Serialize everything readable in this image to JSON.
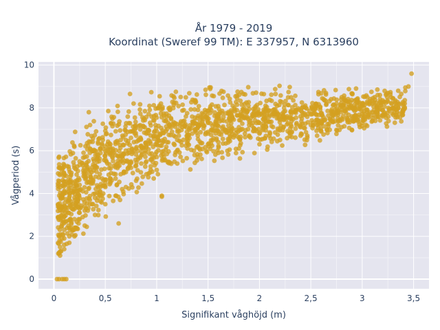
{
  "chart_data": {
    "type": "scatter",
    "title_line1": "År 1979 - 2019",
    "title_line2": "Koordinat (Sweref 99 TM): E 337957, N 6313960",
    "xlabel": "Signifikant våghöjd (m)",
    "ylabel": "Vågperiod (s)",
    "xlim": [
      -0.15,
      3.65
    ],
    "ylim": [
      -0.45,
      10.15
    ],
    "xticks": [
      0,
      0.5,
      1,
      1.5,
      2,
      2.5,
      3,
      3.5
    ],
    "xtick_labels": [
      "0",
      "0,5",
      "1",
      "1,5",
      "2",
      "2,5",
      "3",
      "3,5"
    ],
    "yticks": [
      0,
      2,
      4,
      6,
      8,
      10
    ],
    "ytick_labels": [
      "0",
      "2",
      "4",
      "6",
      "8",
      "10"
    ],
    "grid": true,
    "marker_color": "#d4a020",
    "background_color": "#e5e5ef",
    "series": [
      {
        "x": [
          0.03,
          0.05,
          0.08,
          0.1,
          0.12,
          0.05,
          0.06,
          0.08,
          0.1,
          0.12,
          0.14,
          0.18,
          0.2,
          0.22,
          0.25,
          0.3,
          0.35,
          0.4,
          0.15,
          0.2,
          0.25,
          0.3,
          0.35,
          0.4,
          0.45,
          0.5,
          0.55,
          0.6,
          0.07,
          0.1,
          0.15,
          0.2,
          0.25,
          0.3,
          0.35,
          0.4,
          0.45,
          0.5,
          0.55,
          0.6,
          0.65,
          0.7,
          0.75,
          0.8,
          0.85,
          0.9,
          0.95,
          1.0,
          1.1,
          1.2,
          1.3,
          1.4,
          1.5,
          1.6,
          1.7,
          1.8,
          1.9,
          2.0,
          2.1,
          2.2,
          2.3,
          2.4,
          2.5,
          2.6,
          2.7,
          2.8,
          2.9,
          3.0,
          3.1,
          3.2,
          3.3,
          3.4,
          0.05,
          0.08,
          0.12,
          0.15,
          0.2,
          0.3,
          0.4,
          0.5,
          0.6,
          0.7,
          0.8,
          0.9,
          1.0,
          1.1,
          1.2,
          1.3,
          1.4,
          1.5,
          1.6,
          1.7,
          1.8,
          1.9,
          2.0,
          2.1,
          2.2,
          2.3,
          2.4,
          2.5,
          2.6,
          2.7,
          2.8,
          2.9,
          3.0,
          3.1,
          3.2,
          3.3,
          0.06,
          0.1,
          0.15,
          0.2,
          0.3,
          0.4,
          0.5,
          0.6,
          0.7,
          0.8,
          0.9,
          1.0,
          1.2,
          1.4,
          1.6,
          1.8,
          2.0,
          2.2,
          2.4,
          2.6,
          2.8,
          3.0,
          3.2,
          3.4,
          0.04,
          0.07,
          0.1,
          0.13,
          0.16,
          0.2,
          0.25,
          0.3,
          0.35,
          0.4,
          0.45,
          0.5,
          0.55,
          0.6,
          0.65,
          0.7,
          0.75,
          0.8,
          0.9,
          1.0,
          1.1,
          1.25,
          1.35,
          1.5,
          1.65,
          1.75,
          1.85,
          1.95,
          2.05,
          2.15,
          2.25,
          2.35,
          2.45,
          2.55,
          2.65,
          2.75,
          2.85,
          2.95,
          3.05,
          3.15,
          3.25,
          3.35,
          3.42,
          3.45,
          0.35,
          0.52,
          0.58,
          0.78,
          0.68,
          1.45,
          2.35,
          1.05,
          0.1,
          0.18,
          0.24,
          0.28,
          0.33,
          0.38,
          0.43,
          0.48
        ],
        "y": [
          0.0,
          0.0,
          0.0,
          0.0,
          0.0,
          1.2,
          1.5,
          1.9,
          2.3,
          2.7,
          3.1,
          3.5,
          3.8,
          4.1,
          4.4,
          4.8,
          5.1,
          5.3,
          2.4,
          2.8,
          3.1,
          3.4,
          3.7,
          4.0,
          4.3,
          4.5,
          4.7,
          4.9,
          1.3,
          1.6,
          2.0,
          2.4,
          2.8,
          3.2,
          3.5,
          3.8,
          4.1,
          4.3,
          4.5,
          4.7,
          4.9,
          5.0,
          5.2,
          5.3,
          5.4,
          5.5,
          5.6,
          5.7,
          5.85,
          6.0,
          6.1,
          6.2,
          6.3,
          6.4,
          6.5,
          6.6,
          6.7,
          6.8,
          6.85,
          6.95,
          7.05,
          7.1,
          7.2,
          7.3,
          7.4,
          7.5,
          7.6,
          7.7,
          7.8,
          7.9,
          8.0,
          8.2,
          2.0,
          2.6,
          3.2,
          3.7,
          4.2,
          4.9,
          5.3,
          5.6,
          5.8,
          6.0,
          6.1,
          6.2,
          6.3,
          6.4,
          6.5,
          6.6,
          6.7,
          6.8,
          6.9,
          7.0,
          7.1,
          7.2,
          7.3,
          7.35,
          7.45,
          7.5,
          7.6,
          7.7,
          7.75,
          7.85,
          7.9,
          8.0,
          8.1,
          8.2,
          8.35,
          8.45,
          1.1,
          1.4,
          1.7,
          2.0,
          2.5,
          3.0,
          3.5,
          3.9,
          4.3,
          4.6,
          4.9,
          5.1,
          5.4,
          5.7,
          5.9,
          6.1,
          6.3,
          6.5,
          6.7,
          6.9,
          7.1,
          7.3,
          7.6,
          7.9,
          2.9,
          3.4,
          4.0,
          4.4,
          4.8,
          5.2,
          5.5,
          5.7,
          5.9,
          6.0,
          6.1,
          6.2,
          6.3,
          6.4,
          6.5,
          6.5,
          6.6,
          6.7,
          6.8,
          6.9,
          7.0,
          7.1,
          7.2,
          7.3,
          7.4,
          7.45,
          7.55,
          7.6,
          7.7,
          7.75,
          7.85,
          7.9,
          8.0,
          8.05,
          8.15,
          8.2,
          8.3,
          8.4,
          8.5,
          8.6,
          8.7,
          8.8,
          8.95,
          9.0,
          4.9,
          5.4,
          5.9,
          6.0,
          5.0,
          7.7,
          7.85,
          3.9,
          1.9,
          2.3,
          2.6,
          2.9,
          3.2,
          3.5,
          3.8,
          4.0
        ],
        "outliers_x": [
          0.34,
          0.52,
          3.48,
          1.47,
          1.05,
          0.63
        ],
        "outliers_y": [
          7.8,
          6.3,
          9.6,
          7.9,
          3.85,
          2.6
        ]
      }
    ]
  }
}
